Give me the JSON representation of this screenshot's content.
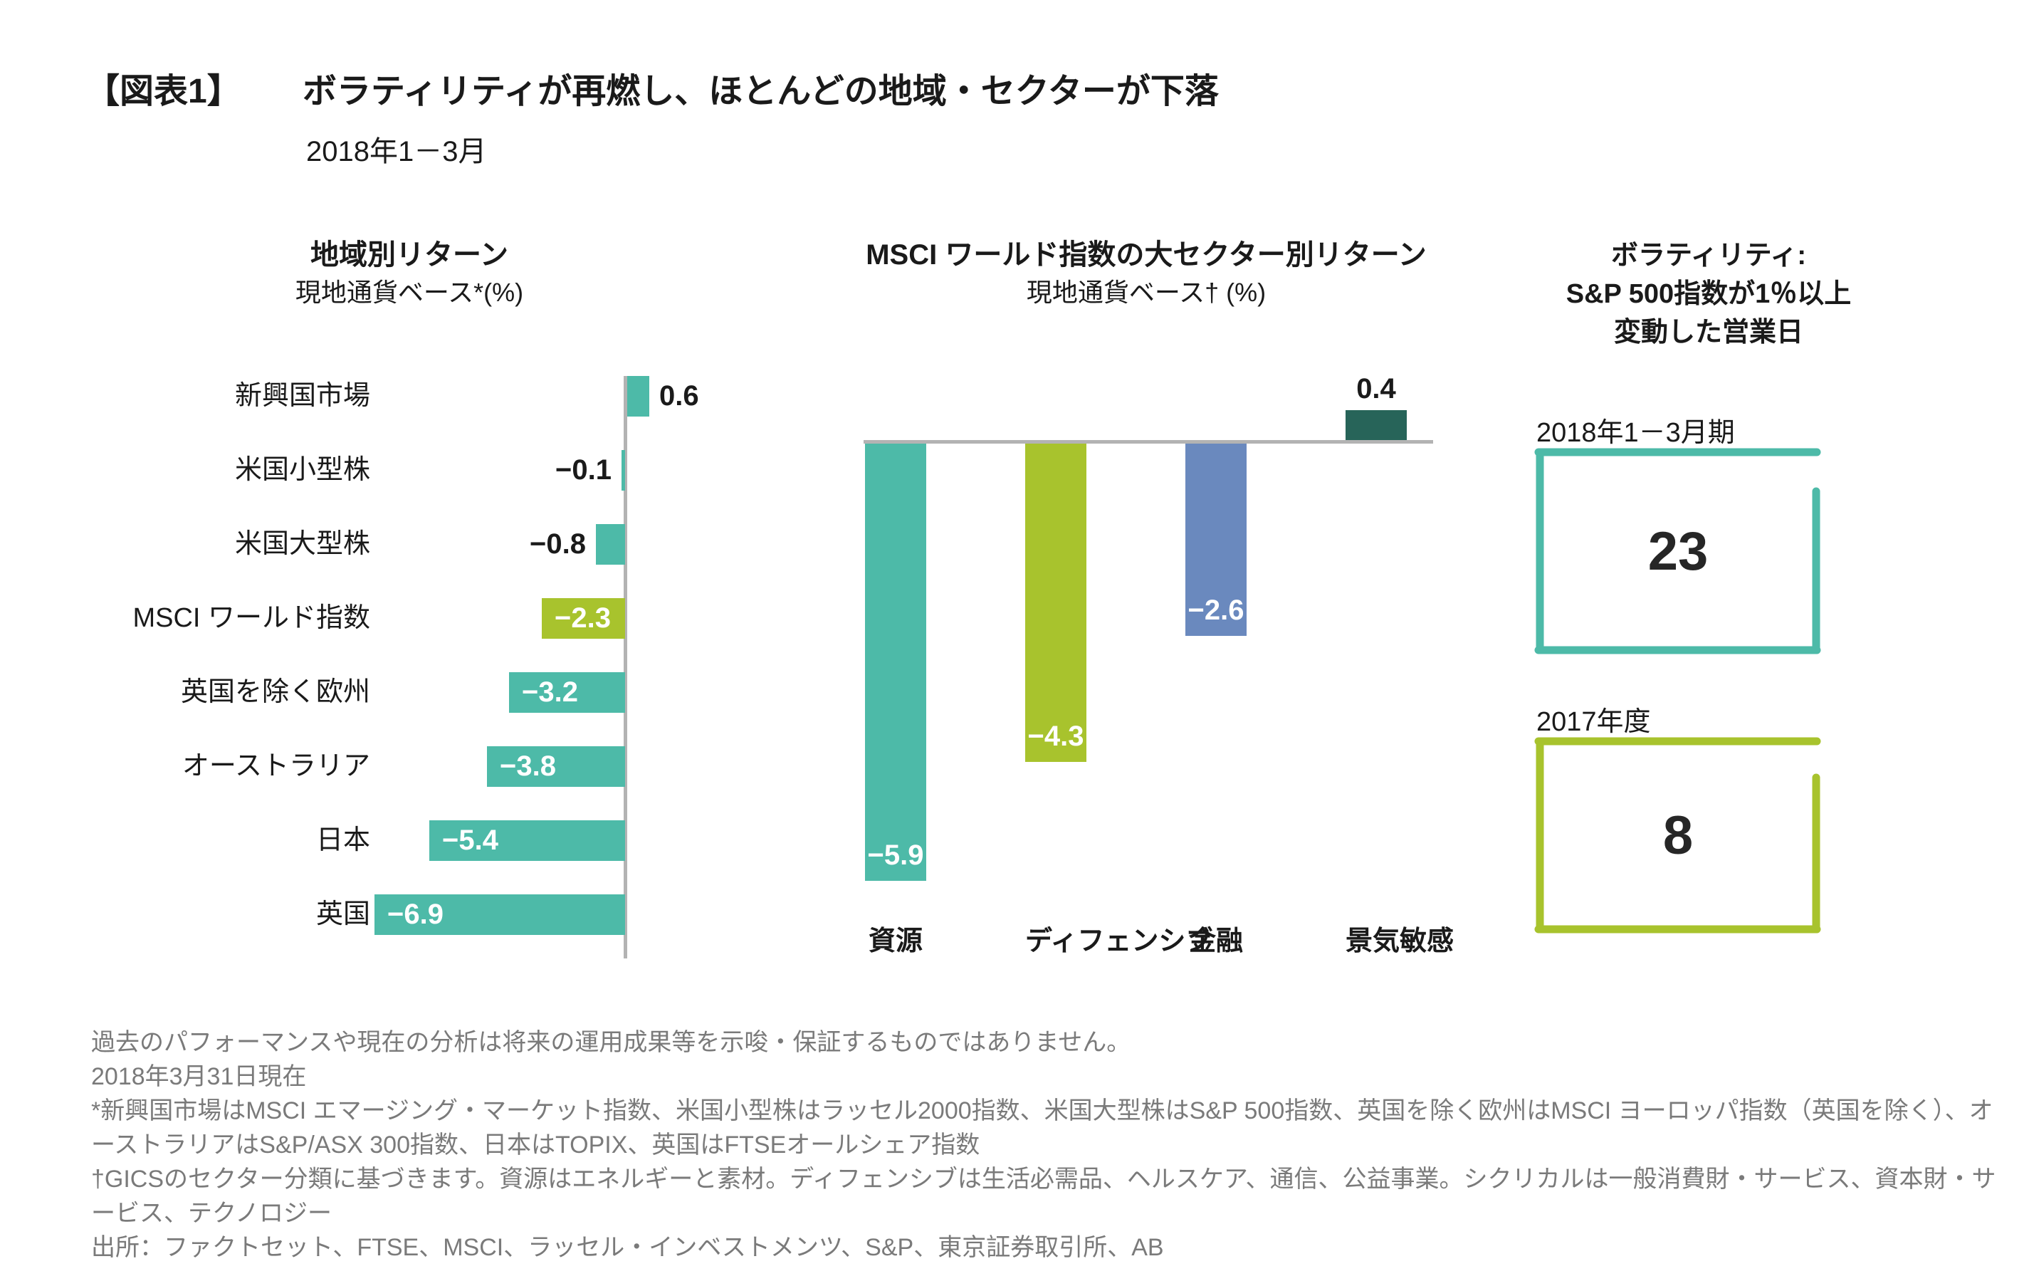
{
  "header": {
    "figure_tag": "【図表1】",
    "title": "ボラティリティが再燃し、ほとんどの地域・セクターが下落",
    "subtitle": "2018年1－3月"
  },
  "colors": {
    "teal": "#4DBAA8",
    "green": "#A8C32D",
    "blue": "#6A89BE",
    "dark_green": "#276459",
    "axis_gray": "#B3B3B3",
    "text_dark": "#1A1A1A",
    "value_white": "#FFFFFF",
    "footnote_gray": "#7A7A7A",
    "big_number_dark": "#262626"
  },
  "chart_data": [
    {
      "type": "bar",
      "orientation": "horizontal",
      "title": "地域別リターン",
      "subtitle": "現地通貨ベース*(%)",
      "categories": [
        "新興国市場",
        "米国小型株",
        "米国大型株",
        "MSCI ワールド指数",
        "英国を除く欧州",
        "オーストラリア",
        "日本",
        "英国"
      ],
      "values": [
        0.6,
        -0.1,
        -0.8,
        -2.3,
        -3.2,
        -3.8,
        -5.4,
        -6.9
      ],
      "value_labels": [
        "0.6",
        "−0.1",
        "−0.8",
        "−2.3",
        "−3.2",
        "−3.8",
        "−5.4",
        "−6.9"
      ],
      "bar_colors": [
        "teal",
        "teal",
        "teal",
        "green",
        "teal",
        "teal",
        "teal",
        "teal"
      ],
      "xlim": [
        -6.9,
        0.6
      ],
      "grid": false,
      "legend": "none"
    },
    {
      "type": "bar",
      "orientation": "vertical",
      "title": "MSCI ワールド指数の大セクター別リターン",
      "subtitle": "現地通貨ベース† (%)",
      "categories": [
        "資源",
        "ディフェンシブ",
        "金融",
        "景気敏感"
      ],
      "values": [
        -5.9,
        -4.3,
        -2.6,
        0.4
      ],
      "value_labels": [
        "−5.9",
        "−4.3",
        "−2.6",
        "0.4"
      ],
      "bar_colors": [
        "teal",
        "green",
        "blue",
        "dark_green"
      ],
      "ylim": [
        -5.9,
        0.4
      ],
      "grid": false,
      "legend": "none"
    }
  ],
  "volatility": {
    "title_line1": "ボラティリティ:",
    "title_line2": "S&P 500指数が1％以上",
    "title_line3": "変動した営業日",
    "items": [
      {
        "label": "2018年1－3月期",
        "value": "23",
        "color": "teal"
      },
      {
        "label": "2017年度",
        "value": "8",
        "color": "green"
      }
    ]
  },
  "footnotes": [
    "過去のパフォーマンスや現在の分析は将来の運用成果等を示唆・保証するものではありません。",
    "2018年3月31日現在",
    "*新興国市場はMSCI エマージング・マーケット指数、米国小型株はラッセル2000指数、米国大型株はS&P 500指数、英国を除く欧州はMSCI ヨーロッパ指数（英国を除く）、オーストラリアはS&P/ASX 300指数、日本はTOPIX、英国はFTSEオールシェア指数",
    "†GICSのセクター分類に基づきます。資源はエネルギーと素材。ディフェンシブは生活必需品、ヘルスケア、通信、公益事業。シクリカルは一般消費財・サービス、資本財・サービス、テクノロジー",
    "出所：ファクトセット、FTSE、MSCI、ラッセル・インベストメンツ、S&P、東京証券取引所、AB"
  ]
}
